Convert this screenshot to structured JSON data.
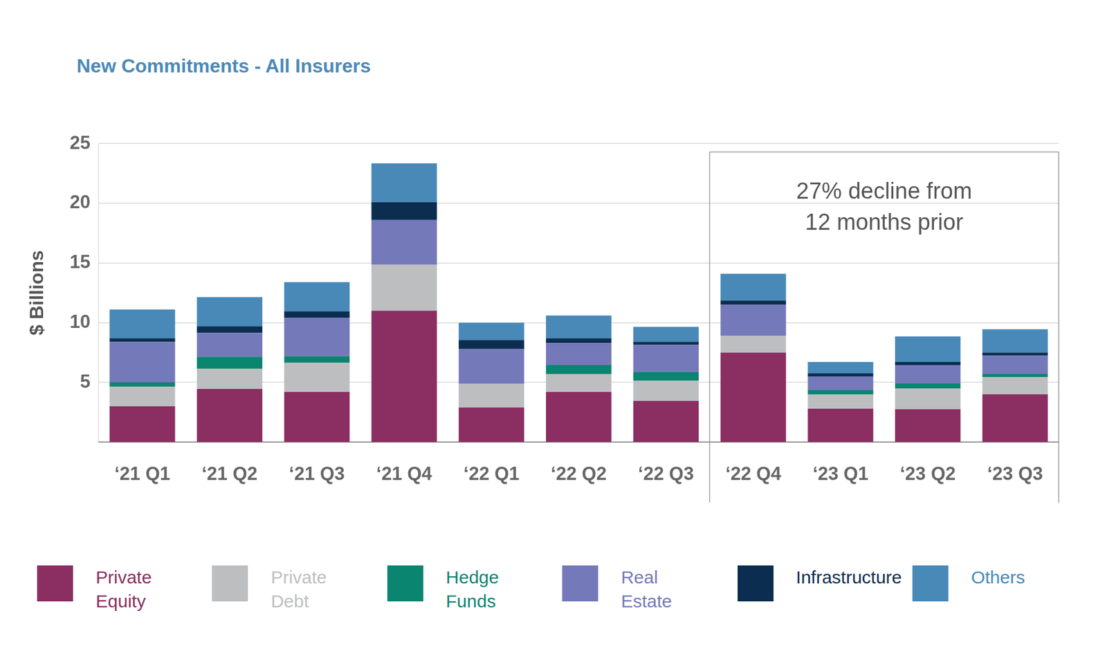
{
  "chart_data": {
    "type": "bar",
    "title": "New Commitments - All Insurers",
    "y_label": "$ Billions",
    "categories": [
      "‘21 Q1",
      "‘21 Q2",
      "‘21 Q3",
      "‘21 Q4",
      "‘22 Q1",
      "‘22 Q2",
      "‘22 Q3",
      "‘22 Q4",
      "‘23 Q1",
      "‘23 Q2",
      "‘23 Q3"
    ],
    "series": [
      {
        "name": "Private Equity",
        "color": "#8b2e62",
        "values": [
          3.0,
          4.45,
          4.2,
          11.0,
          2.9,
          4.2,
          3.45,
          7.5,
          2.8,
          2.75,
          4.0
        ]
      },
      {
        "name": "Private Debt",
        "color": "#bdbec0",
        "values": [
          1.65,
          1.7,
          2.45,
          3.85,
          2.0,
          1.5,
          1.7,
          1.4,
          1.2,
          1.75,
          1.45
        ]
      },
      {
        "name": "Hedge Funds",
        "color": "#0a8570",
        "values": [
          0.35,
          1.0,
          0.55,
          0,
          0,
          0.75,
          0.7,
          0,
          0.35,
          0.4,
          0.25
        ]
      },
      {
        "name": "Real Estate",
        "color": "#7479b9",
        "values": [
          3.4,
          2.0,
          3.2,
          3.75,
          2.9,
          1.85,
          2.3,
          2.6,
          1.15,
          1.55,
          1.55
        ]
      },
      {
        "name": "Infrastructure",
        "color": "#0b2e50",
        "values": [
          0.3,
          0.55,
          0.55,
          1.5,
          0.75,
          0.4,
          0.25,
          0.35,
          0.25,
          0.25,
          0.25
        ]
      },
      {
        "name": "Others",
        "color": "#4889b8",
        "values": [
          2.4,
          2.45,
          2.45,
          3.25,
          1.45,
          1.9,
          1.25,
          2.25,
          0.95,
          2.15,
          1.95
        ]
      }
    ],
    "ylim": [
      0,
      25
    ],
    "yticks": [
      5,
      10,
      15,
      20,
      25
    ],
    "grid": true,
    "stacked": true,
    "legend": "bottom",
    "annotations": [
      {
        "text": [
          "27% decline from",
          "12 months prior"
        ],
        "from": "‘22 Q4",
        "to": "‘23 Q3"
      }
    ]
  }
}
